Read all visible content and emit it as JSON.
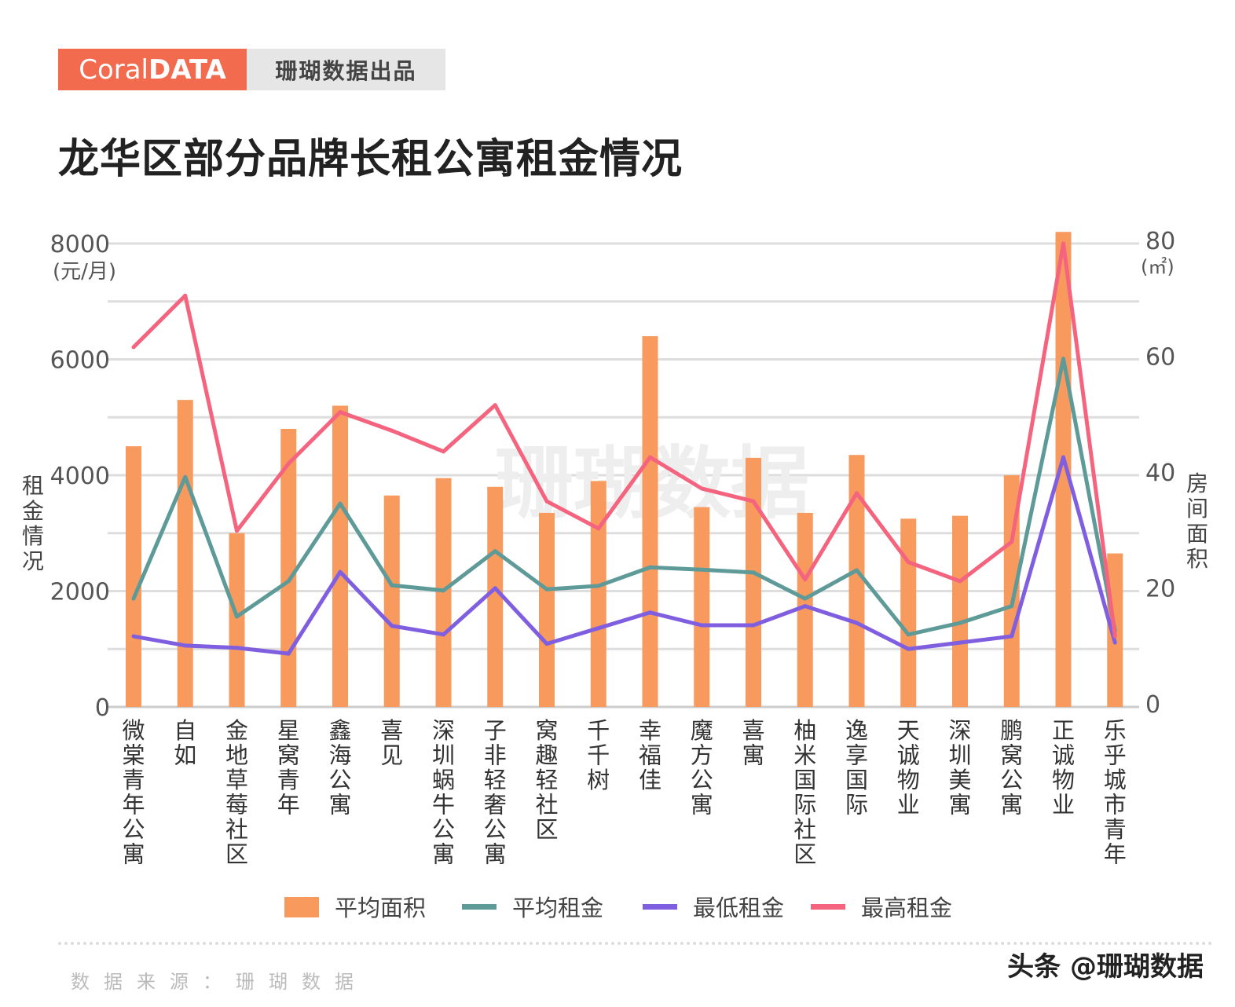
{
  "brand": {
    "logo_light": "Coral",
    "logo_bold": "DATA",
    "tagline": "珊瑚数据出品"
  },
  "title": "龙华区部分品牌长租公寓租金情况",
  "watermark": "珊瑚数据",
  "source": "数据来源：珊瑚数据",
  "credit": "头条 @珊瑚数据",
  "colors": {
    "area": "#f89a5e",
    "avg": "#5e9a98",
    "min": "#7f5fe0",
    "max": "#f5647e"
  },
  "chart_data": {
    "type": "bar+line",
    "title": "龙华区部分品牌长租公寓租金情况",
    "categories": [
      "微棠青年公寓",
      "自如",
      "金地草莓社区",
      "星窝青年",
      "鑫海公寓",
      "喜见",
      "深圳蜗牛公寓",
      "子非轻奢公寓",
      "窝趣轻社区",
      "千千树",
      "幸福佳",
      "魔方公寓",
      "喜寓",
      "柚米国际社区",
      "逸享国际",
      "天诚物业",
      "深圳美寓",
      "鹏窝公寓",
      "正诚物业",
      "乐乎城市青年"
    ],
    "ylabel": "租金情况",
    "ylabel_unit": "(元/月)",
    "ylim": [
      0,
      8000
    ],
    "yticks": [
      "0",
      "2000",
      "4000",
      "6000",
      "8000"
    ],
    "y2label": "房间面积",
    "y2label_unit": "(㎡)",
    "y2lim": [
      0,
      80
    ],
    "y2ticks": [
      "0",
      "20",
      "40",
      "60",
      "80"
    ],
    "grid": true,
    "legend_position": "bottom",
    "series": [
      {
        "name": "平均面积",
        "type": "bar",
        "axis": "right",
        "values": [
          45,
          53,
          30,
          48,
          52,
          36.5,
          39.5,
          38,
          33.5,
          39,
          64,
          34.5,
          43,
          33.5,
          43.5,
          32.5,
          33,
          40,
          82,
          26.5
        ]
      },
      {
        "name": "平均租金",
        "type": "line",
        "axis": "left",
        "values": [
          1870,
          3970,
          1560,
          2170,
          3510,
          2100,
          2010,
          2690,
          2030,
          2090,
          2410,
          2370,
          2320,
          1870,
          2360,
          1250,
          1450,
          1740,
          6010,
          1310
        ]
      },
      {
        "name": "最低租金",
        "type": "line",
        "axis": "left",
        "values": [
          1220,
          1060,
          1020,
          920,
          2330,
          1400,
          1250,
          2050,
          1090,
          1360,
          1630,
          1410,
          1410,
          1740,
          1450,
          1000,
          1110,
          1220,
          4310,
          1110
        ]
      },
      {
        "name": "最高租金",
        "type": "line",
        "axis": "left",
        "values": [
          6210,
          7100,
          3040,
          4200,
          5090,
          4770,
          4410,
          5210,
          3550,
          3080,
          4310,
          3770,
          3550,
          2200,
          3690,
          2500,
          2170,
          2850,
          8000,
          1220
        ]
      }
    ]
  }
}
